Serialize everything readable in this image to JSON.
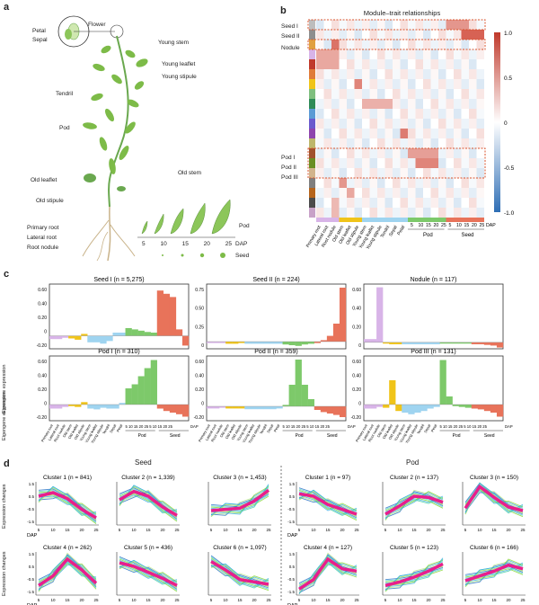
{
  "panel_labels": {
    "a": "a",
    "b": "b",
    "c": "c",
    "d": "d"
  },
  "panel_a": {
    "plant_labels": [
      "Flower",
      "Petal",
      "Sepal",
      "Young stem",
      "Young leaflet",
      "Young stipule",
      "Tendril",
      "Pod",
      "Old stem",
      "Old leaflet",
      "Old stipule",
      "Primary root",
      "Lateral root",
      "Root nodule"
    ],
    "dap_ticks": [
      "5",
      "10",
      "15",
      "20",
      "25"
    ],
    "dap_label": "DAP",
    "pod_label": "Pod",
    "seed_label": "Seed"
  },
  "panel_b": {
    "title": "Module–trait relationships",
    "row_labels": [
      "Seed I",
      "Seed II",
      "Nodule",
      "Pod I",
      "Pod II",
      "Pod III"
    ],
    "colorbar_ticks": [
      "1.0",
      "0.5",
      "0",
      "-0.5",
      "-1.0"
    ],
    "x_labels": [
      "Primary root",
      "Lateral root",
      "Root nodule",
      "Old stem",
      "Old leaflet",
      "Old stipule",
      "Young stem",
      "Young leaflet",
      "Young stipule",
      "Tendril",
      "Sepal",
      "Petal",
      "5",
      "10",
      "15",
      "20",
      "25",
      "5",
      "10",
      "15",
      "20",
      "25"
    ],
    "dap_label": "DAP",
    "group_pod": "Pod",
    "group_seed": "Seed",
    "colors": {
      "pos": "#c0392b",
      "neg": "#2e6eb5"
    }
  },
  "panel_c": {
    "ylabel": "Eigengene expression",
    "tissue_labels": [
      "Primary root",
      "Lateral root",
      "Root nodule",
      "Old stem",
      "Old leaflet",
      "Old stipule",
      "Young stem",
      "Young leaflet",
      "Young stipule",
      "Tendril",
      "Sepal",
      "Petal"
    ],
    "dap_ticks": "5 10 15 20 25 5 10 15 20 25",
    "dap_label": "DAP",
    "group_pod": "Pod",
    "group_seed": "Seed",
    "colors": {
      "root": "#d8b4e8",
      "stemleaf": "#f0c419",
      "young": "#9fd4f0",
      "tendril": "#a9d9a0",
      "pod": "#7dc96a",
      "seed": "#e8735a"
    }
  },
  "chart_data": [
    {
      "type": "bar",
      "title": "Seed I (n = 5,275)",
      "ylim": [
        -0.2,
        0.8
      ],
      "yticks": [
        "0.60",
        "0.40",
        "0.20",
        "0",
        "-0.20"
      ],
      "values": [
        -0.05,
        -0.05,
        -0.03,
        -0.04,
        -0.06,
        0.03,
        -0.1,
        -0.1,
        -0.12,
        -0.08,
        0.05,
        0.05,
        0.12,
        0.1,
        0.08,
        0.06,
        0.05,
        0.7,
        0.65,
        0.6,
        0.1,
        -0.15
      ]
    },
    {
      "type": "bar",
      "title": "Seed II (n = 224)",
      "ylim": [
        -0.1,
        0.8
      ],
      "yticks": [
        "0.75",
        "0.50",
        "0.25",
        "0"
      ],
      "values": [
        -0.02,
        -0.02,
        -0.02,
        -0.03,
        -0.03,
        -0.02,
        -0.03,
        -0.03,
        -0.03,
        -0.03,
        -0.03,
        -0.03,
        -0.04,
        -0.05,
        -0.06,
        -0.04,
        -0.03,
        -0.02,
        0.02,
        0.08,
        0.25,
        0.75
      ]
    },
    {
      "type": "bar",
      "title": "Nodule (n = 117)",
      "ylim": [
        -0.1,
        0.9
      ],
      "yticks": [
        "0.60",
        "0.40",
        "0.20",
        "0"
      ],
      "values": [
        0.05,
        0.05,
        0.85,
        -0.02,
        -0.03,
        -0.03,
        -0.03,
        -0.03,
        -0.03,
        -0.03,
        -0.03,
        -0.03,
        -0.02,
        -0.02,
        -0.02,
        -0.02,
        -0.02,
        -0.03,
        -0.03,
        -0.04,
        -0.05,
        -0.08
      ]
    },
    {
      "type": "bar",
      "title": "Pod I (n = 310)",
      "ylim": [
        -0.2,
        0.6
      ],
      "yticks": [
        "0.60",
        "0.40",
        "0.20",
        "0",
        "-0.20"
      ],
      "values": [
        -0.05,
        -0.05,
        -0.03,
        -0.02,
        -0.03,
        0.03,
        -0.05,
        -0.06,
        -0.04,
        -0.05,
        -0.05,
        0.02,
        0.2,
        0.25,
        0.35,
        0.45,
        0.55,
        -0.05,
        -0.08,
        -0.1,
        -0.12,
        -0.15
      ]
    },
    {
      "type": "bar",
      "title": "Pod II (n = 359)",
      "ylim": [
        -0.2,
        0.7
      ],
      "yticks": [
        "0.60",
        "0.40",
        "0.20",
        "0",
        "-0.20"
      ],
      "values": [
        -0.03,
        -0.03,
        -0.02,
        -0.03,
        -0.03,
        -0.03,
        -0.04,
        -0.04,
        -0.04,
        -0.04,
        -0.04,
        -0.03,
        0.02,
        0.3,
        0.65,
        0.3,
        0.1,
        -0.05,
        -0.08,
        -0.1,
        -0.12,
        -0.15
      ]
    },
    {
      "type": "bar",
      "title": "Pod III (n = 131)",
      "ylim": [
        -0.2,
        0.6
      ],
      "yticks": [
        "0.60",
        "0.40",
        "0.20",
        "0",
        "-0.20"
      ],
      "values": [
        -0.05,
        -0.05,
        -0.03,
        -0.04,
        0.3,
        -0.08,
        -0.1,
        -0.12,
        -0.1,
        -0.08,
        -0.05,
        -0.03,
        0.55,
        0.1,
        -0.02,
        -0.03,
        -0.04,
        -0.05,
        -0.06,
        -0.08,
        -0.1,
        -0.15
      ]
    }
  ],
  "panel_d": {
    "seed_header": "Seed",
    "pod_header": "Pod",
    "ylabel_top": "Expression changes",
    "ylabel_bottom": "Expression changes",
    "yticks": [
      "1.5",
      "0.5",
      "-0.5",
      "-1.5"
    ],
    "xticks": [
      "5",
      "10",
      "15",
      "20",
      "25"
    ],
    "dap_label": "DAP",
    "line_colors": [
      "#7ed321",
      "#b8e986",
      "#4ad0c8",
      "#2fa8e0",
      "#1565c0",
      "#e91e8c"
    ],
    "clusters": [
      {
        "title": "Cluster 1 (n = 841)",
        "trend": [
          0.6,
          0.9,
          0.4,
          -0.5,
          -1.2
        ]
      },
      {
        "title": "Cluster 2 (n = 1,339)",
        "trend": [
          0.3,
          1.0,
          0.6,
          -0.3,
          -1.0
        ]
      },
      {
        "title": "Cluster 3 (n = 1,453)",
        "trend": [
          -0.6,
          -0.5,
          -0.4,
          0.2,
          1.1
        ]
      },
      {
        "title": "Cluster 1 (n = 97)",
        "trend": [
          0.8,
          0.6,
          -0.1,
          -0.5,
          -0.9
        ]
      },
      {
        "title": "Cluster 2 (n = 137)",
        "trend": [
          -0.9,
          -0.2,
          0.6,
          0.5,
          0.1
        ]
      },
      {
        "title": "Cluster 3 (n = 150)",
        "trend": [
          -0.4,
          1.4,
          0.5,
          -0.3,
          -0.6
        ]
      },
      {
        "title": "Cluster 4 (n = 262)",
        "trend": [
          -1.0,
          -0.2,
          1.2,
          0.3,
          -0.8
        ]
      },
      {
        "title": "Cluster 5 (n = 436)",
        "trend": [
          0.9,
          0.6,
          0.1,
          -0.4,
          -1.0
        ]
      },
      {
        "title": "Cluster 6 (n = 1,097)",
        "trend": [
          1.0,
          0.3,
          -0.5,
          -0.7,
          -0.9
        ]
      },
      {
        "title": "Cluster 4 (n = 127)",
        "trend": [
          -1.3,
          -0.5,
          1.2,
          0.4,
          0.2
        ]
      },
      {
        "title": "Cluster 5 (n = 123)",
        "trend": [
          -1.0,
          -0.7,
          -0.3,
          0.2,
          0.8
        ]
      },
      {
        "title": "Cluster 6 (n = 166)",
        "trend": [
          -0.6,
          -0.2,
          0.2,
          0.7,
          0.4
        ]
      }
    ]
  }
}
